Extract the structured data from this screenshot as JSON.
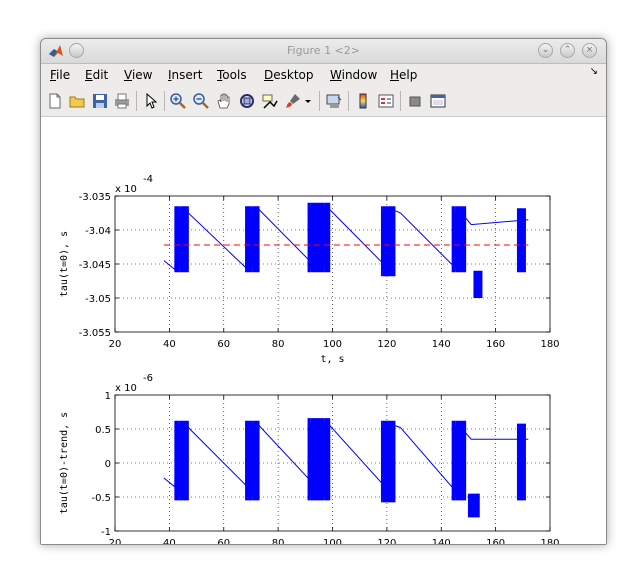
{
  "window": {
    "title": "Figure 1 <2>"
  },
  "menu": {
    "items": [
      {
        "label": "File",
        "hot": "F",
        "rest": "ile"
      },
      {
        "label": "Edit",
        "hot": "E",
        "rest": "dit"
      },
      {
        "label": "View",
        "hot": "V",
        "rest": "iew"
      },
      {
        "label": "Insert",
        "hot": "I",
        "rest": "nsert"
      },
      {
        "label": "Tools",
        "hot": "T",
        "rest": "ools"
      },
      {
        "label": "Desktop",
        "hot": "D",
        "rest": "esktop"
      },
      {
        "label": "Window",
        "hot": "W",
        "rest": "indow"
      },
      {
        "label": "Help",
        "hot": "H",
        "rest": "elp"
      }
    ]
  },
  "toolbar": {
    "icons": [
      "new-figure-icon",
      "open-icon",
      "save-icon",
      "print-icon",
      "pointer-icon",
      "zoom-in-icon",
      "zoom-out-icon",
      "pan-icon",
      "rotate-icon",
      "data-cursor-icon",
      "brush-icon",
      "link-icon",
      "colorbar-icon",
      "legend-icon",
      "hide-tools-icon",
      "show-tools-icon"
    ]
  },
  "chart_data": [
    {
      "type": "line",
      "xlabel": "t, s",
      "ylabel": "tau(t=0), s",
      "exponent_label": "x 10",
      "exponent": "-4",
      "xlim": [
        20,
        180
      ],
      "ylim": [
        -3.055,
        -3.035
      ],
      "xticks": [
        "20",
        "40",
        "60",
        "80",
        "100",
        "120",
        "140",
        "160",
        "180"
      ],
      "yticks": [
        "-3.035",
        "-3.04",
        "-3.045",
        "-3.05",
        "-3.055"
      ],
      "grid": true,
      "series": [
        {
          "color": "#0000ff",
          "style": "solid",
          "x": [
            38,
            42,
            42.5,
            43,
            47,
            68,
            69,
            73,
            94,
            95,
            99,
            120,
            121,
            125,
            145,
            146,
            151,
            172
          ],
          "y": [
            -3.0445,
            -3.0458,
            -3.0368,
            -3.0368,
            -3.0375,
            -3.0455,
            -3.0368,
            -3.037,
            -3.0455,
            -3.0365,
            -3.037,
            -3.0455,
            -3.0368,
            -3.0375,
            -3.0455,
            -3.0368,
            -3.0392,
            -3.0385
          ]
        },
        {
          "color": "#ff0000",
          "style": "dashed",
          "x": [
            38,
            172
          ],
          "y": [
            -3.0422,
            -3.0422
          ]
        }
      ],
      "bursts": [
        {
          "x0": 42,
          "x1": 47,
          "ymin": -3.0462,
          "ymax": -3.0365
        },
        {
          "x0": 68,
          "x1": 73,
          "ymin": -3.0462,
          "ymax": -3.0365
        },
        {
          "x0": 91,
          "x1": 99,
          "ymin": -3.0462,
          "ymax": -3.036
        },
        {
          "x0": 118,
          "x1": 123,
          "ymin": -3.0468,
          "ymax": -3.0365
        },
        {
          "x0": 144,
          "x1": 149,
          "ymin": -3.0462,
          "ymax": -3.0365
        },
        {
          "x0": 152,
          "x1": 155,
          "ymin": -3.05,
          "ymax": -3.046
        },
        {
          "x0": 168,
          "x1": 171,
          "ymin": -3.0462,
          "ymax": -3.0368
        }
      ]
    },
    {
      "type": "line",
      "xlabel": "t, s",
      "ylabel": "tau(t=0)-trend, s",
      "exponent_label": "x 10",
      "exponent": "-6",
      "xlim": [
        20,
        180
      ],
      "ylim": [
        -1,
        1
      ],
      "xticks": [
        "20",
        "40",
        "60",
        "80",
        "100",
        "120",
        "140",
        "160",
        "180"
      ],
      "yticks": [
        "1",
        "0.5",
        "0",
        "-0.5",
        "-1"
      ],
      "grid": true,
      "series": [
        {
          "color": "#0000ff",
          "style": "solid",
          "x": [
            38,
            42,
            42.5,
            43,
            47,
            68,
            69,
            73,
            94,
            95,
            99,
            120,
            121,
            125,
            145,
            146,
            151,
            172
          ],
          "y": [
            -0.22,
            -0.35,
            0.58,
            0.58,
            0.52,
            -0.32,
            0.58,
            0.55,
            -0.35,
            0.62,
            0.55,
            -0.38,
            0.58,
            0.52,
            -0.4,
            0.58,
            0.35,
            0.35
          ]
        }
      ],
      "bursts": [
        {
          "x0": 42,
          "x1": 47,
          "ymin": -0.55,
          "ymax": 0.62
        },
        {
          "x0": 68,
          "x1": 73,
          "ymin": -0.55,
          "ymax": 0.62
        },
        {
          "x0": 91,
          "x1": 99,
          "ymin": -0.55,
          "ymax": 0.66
        },
        {
          "x0": 118,
          "x1": 123,
          "ymin": -0.58,
          "ymax": 0.62
        },
        {
          "x0": 144,
          "x1": 149,
          "ymin": -0.55,
          "ymax": 0.62
        },
        {
          "x0": 150,
          "x1": 154,
          "ymin": -0.8,
          "ymax": -0.45
        },
        {
          "x0": 168,
          "x1": 171,
          "ymin": -0.55,
          "ymax": 0.58
        }
      ]
    }
  ]
}
